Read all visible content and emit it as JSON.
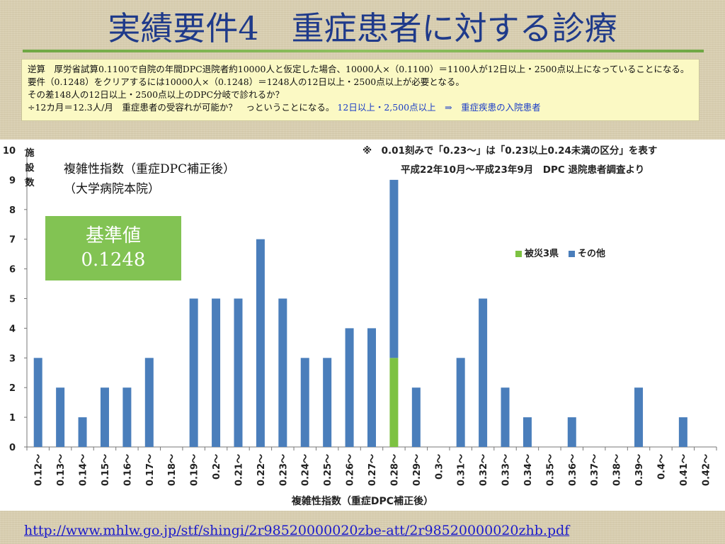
{
  "slide": {
    "title": "実績要件4　重症患者に対する診療",
    "note_lines": [
      "逆算　厚労省試算0.1100で自院の年間DPC退院者約10000人と仮定した場合、10000人×（0.1100）＝1100人が12日以上・2500点以上になっていることになる。要件（0.1248）をクリアするには10000人×（0.1248）＝1248人の12日以上・2500点以上が必要となる。",
      "その差148人の12日以上・2500点以上のDPC分岐で診れるか？",
      "÷12カ月＝12.3人/月　重症患者の受容れが可能か？　っということになる。"
    ],
    "note_highlight": "12日以上・2,500点以上　⇒　重症疾患の入院患者",
    "kijun_label": "基準値",
    "kijun_value": "0.1248",
    "source_url": "http://www.mhlw.go.jp/stf/shingi/2r98520000020zbe-att/2r98520000020zhb.pdf"
  },
  "chart_data": {
    "type": "bar",
    "stacked": true,
    "title": "複雑性指数（重症DPC補正後）",
    "subtitle": "（大学病院本院）",
    "annotations": [
      "※　0.01刻みで「0.23～」は「0.23以上0.24未満の区分」を表す",
      "平成22年10月～平成23年9月　DPC 退院患者調査より"
    ],
    "xlabel": "複雑性指数（重症DPC補正後）",
    "ylabel": "施設数",
    "ylim": [
      0,
      10
    ],
    "yticks": [
      0,
      1,
      2,
      3,
      4,
      5,
      6,
      7,
      8,
      9,
      10
    ],
    "categories": [
      "0.12～",
      "0.13～",
      "0.14～",
      "0.15～",
      "0.16～",
      "0.17～",
      "0.18～",
      "0.19～",
      "0.2～",
      "0.21～",
      "0.22～",
      "0.23～",
      "0.24～",
      "0.25～",
      "0.26～",
      "0.27～",
      "0.28～",
      "0.29～",
      "0.3～",
      "0.31～",
      "0.32～",
      "0.33～",
      "0.34～",
      "0.35～",
      "0.36～",
      "0.37～",
      "0.38～",
      "0.39～",
      "0.4～",
      "0.41～",
      "0.42～"
    ],
    "series": [
      {
        "name": "被災3県",
        "color": "#7dc242",
        "values": [
          0,
          0,
          0,
          0,
          0,
          0,
          0,
          0,
          0,
          0,
          0,
          0,
          0,
          0,
          0,
          0,
          3,
          0,
          0,
          0,
          0,
          0,
          0,
          0,
          0,
          0,
          0,
          0,
          0,
          0,
          0
        ]
      },
      {
        "name": "その他",
        "color": "#4a7ebb",
        "values": [
          3,
          2,
          1,
          2,
          2,
          3,
          0,
          5,
          5,
          5,
          7,
          5,
          3,
          3,
          4,
          4,
          6,
          2,
          0,
          3,
          5,
          2,
          1,
          0,
          1,
          0,
          0,
          2,
          0,
          1,
          0
        ]
      }
    ],
    "legend_position": "right",
    "grid": false
  }
}
